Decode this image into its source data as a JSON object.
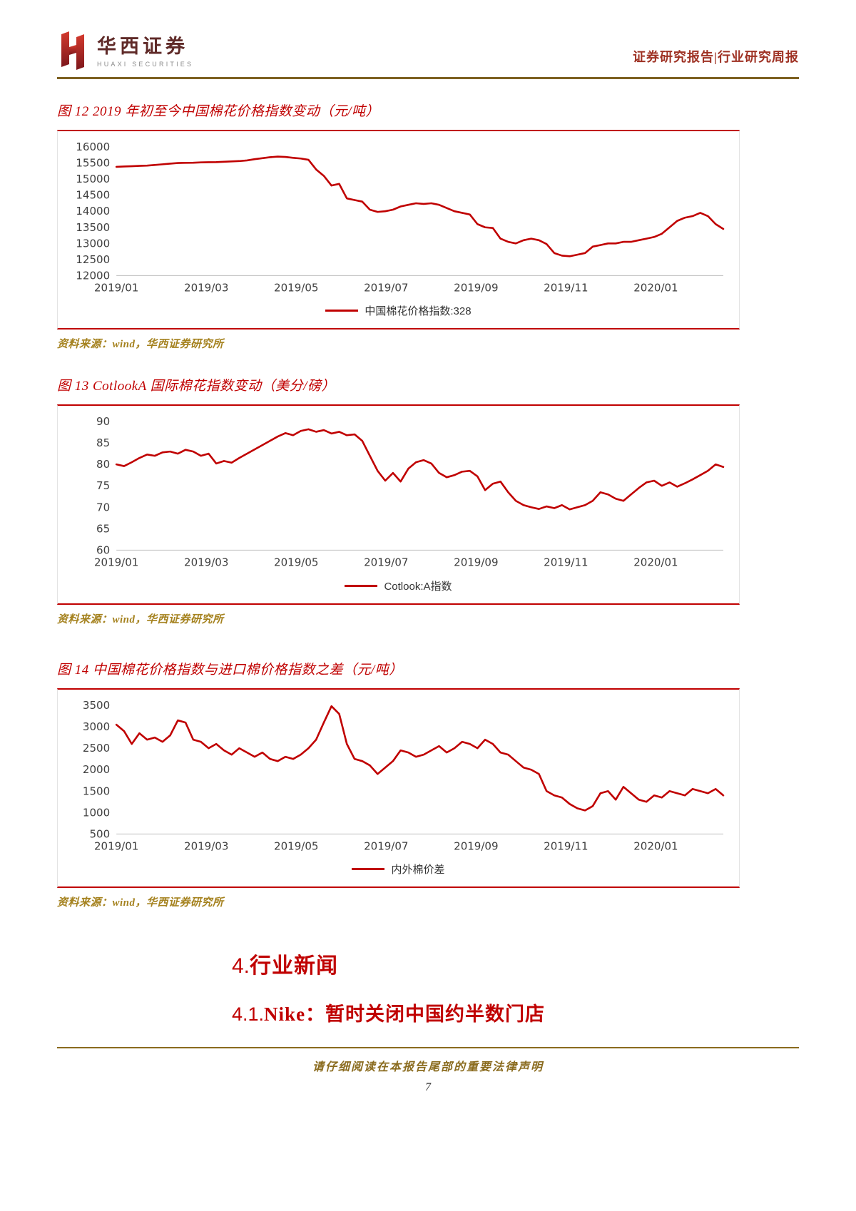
{
  "page": {
    "header": {
      "logo_cn": "华西证券",
      "logo_en": "HUAXI SECURITIES",
      "report_type": "证券研究报告|行业研究周报"
    },
    "source_note": "资料来源：wind，华西证券研究所",
    "sections": [
      {
        "number": "4.",
        "title": "行业新闻"
      },
      {
        "number": "4.1.",
        "title": "Nike：暂时关闭中国约半数门店"
      }
    ],
    "footer": {
      "disclaimer": "请仔细阅读在本报告尾部的重要法律声明",
      "page_number": "7"
    },
    "colors": {
      "accent_red": "#c00000",
      "source_gold": "#a5821f",
      "rule_bronze": "#7d6020"
    }
  },
  "chart_data": [
    {
      "type": "line",
      "title": "图 12 2019 年初至今中国棉花价格指数变动（元/吨）",
      "ylim": [
        12000,
        16000
      ],
      "ytick_step": 500,
      "x_tick_labels": [
        "2019/01",
        "2019/03",
        "2019/05",
        "2019/07",
        "2019/09",
        "2019/11",
        "2020/01"
      ],
      "x_tick_months": [
        0,
        2,
        4,
        6,
        8,
        10,
        12
      ],
      "x_total_months": 13.5,
      "line_color": "#c00000",
      "legend_position": "bottom",
      "grid": false,
      "series": [
        {
          "name": "中国棉花价格指数:328",
          "values": [
            15380,
            15390,
            15400,
            15410,
            15420,
            15440,
            15460,
            15480,
            15500,
            15505,
            15510,
            15520,
            15525,
            15530,
            15540,
            15550,
            15560,
            15580,
            15620,
            15650,
            15680,
            15700,
            15690,
            15660,
            15640,
            15600,
            15300,
            15100,
            14800,
            14850,
            14400,
            14350,
            14300,
            14050,
            13980,
            14000,
            14050,
            14150,
            14200,
            14250,
            14230,
            14250,
            14200,
            14100,
            14000,
            13950,
            13900,
            13600,
            13500,
            13480,
            13150,
            13050,
            13000,
            13100,
            13150,
            13100,
            12980,
            12700,
            12620,
            12600,
            12650,
            12700,
            12900,
            12950,
            13000,
            13000,
            13050,
            13050,
            13100,
            13150,
            13200,
            13300,
            13500,
            13700,
            13800,
            13850,
            13950,
            13850,
            13600,
            13450
          ]
        }
      ]
    },
    {
      "type": "line",
      "title": "图 13 CotlookA 国际棉花指数变动（美分/磅）",
      "ylim": [
        60,
        90
      ],
      "ytick_step": 5,
      "x_tick_labels": [
        "2019/01",
        "2019/03",
        "2019/05",
        "2019/07",
        "2019/09",
        "2019/11",
        "2020/01"
      ],
      "x_tick_months": [
        0,
        2,
        4,
        6,
        8,
        10,
        12
      ],
      "x_total_months": 13.5,
      "line_color": "#c00000",
      "legend_position": "bottom",
      "grid": false,
      "series": [
        {
          "name": "Cotlook:A指数",
          "values": [
            80.0,
            79.6,
            80.5,
            81.5,
            82.3,
            82.0,
            82.8,
            83.0,
            82.5,
            83.4,
            83.0,
            82.0,
            82.5,
            80.2,
            80.8,
            80.4,
            81.5,
            82.5,
            83.5,
            84.5,
            85.5,
            86.5,
            87.3,
            86.8,
            87.8,
            88.2,
            87.6,
            88.0,
            87.2,
            87.6,
            86.8,
            87.0,
            85.5,
            82.0,
            78.5,
            76.2,
            78.0,
            76.0,
            79.0,
            80.5,
            81.0,
            80.2,
            78.0,
            77.0,
            77.5,
            78.3,
            78.5,
            77.2,
            74.0,
            75.5,
            76.0,
            73.5,
            71.5,
            70.5,
            70.0,
            69.6,
            70.2,
            69.8,
            70.5,
            69.5,
            70.0,
            70.5,
            71.5,
            73.5,
            73.0,
            72.0,
            71.5,
            73.0,
            74.5,
            75.8,
            76.2,
            75.0,
            75.8,
            74.8,
            75.6,
            76.5,
            77.5,
            78.5,
            80.0,
            79.4
          ]
        }
      ]
    },
    {
      "type": "line",
      "title": "图 14 中国棉花价格指数与进口棉价格指数之差（元/吨）",
      "ylim": [
        500,
        3500
      ],
      "ytick_step": 500,
      "x_tick_labels": [
        "2019/01",
        "2019/03",
        "2019/05",
        "2019/07",
        "2019/09",
        "2019/11",
        "2020/01"
      ],
      "x_tick_months": [
        0,
        2,
        4,
        6,
        8,
        10,
        12
      ],
      "x_total_months": 13.5,
      "line_color": "#c00000",
      "legend_position": "bottom",
      "grid": false,
      "series": [
        {
          "name": "内外棉价差",
          "values": [
            3050,
            2900,
            2600,
            2850,
            2700,
            2750,
            2650,
            2800,
            3150,
            3100,
            2700,
            2650,
            2500,
            2600,
            2450,
            2350,
            2500,
            2400,
            2300,
            2400,
            2250,
            2200,
            2300,
            2250,
            2350,
            2500,
            2700,
            3100,
            3480,
            3300,
            2600,
            2250,
            2200,
            2100,
            1900,
            2050,
            2200,
            2450,
            2400,
            2300,
            2350,
            2450,
            2550,
            2400,
            2500,
            2650,
            2600,
            2500,
            2700,
            2600,
            2400,
            2350,
            2200,
            2050,
            2000,
            1900,
            1500,
            1400,
            1350,
            1200,
            1100,
            1050,
            1150,
            1450,
            1500,
            1300,
            1600,
            1450,
            1300,
            1250,
            1400,
            1350,
            1500,
            1450,
            1400,
            1550,
            1500,
            1450,
            1550,
            1400
          ]
        }
      ]
    }
  ]
}
